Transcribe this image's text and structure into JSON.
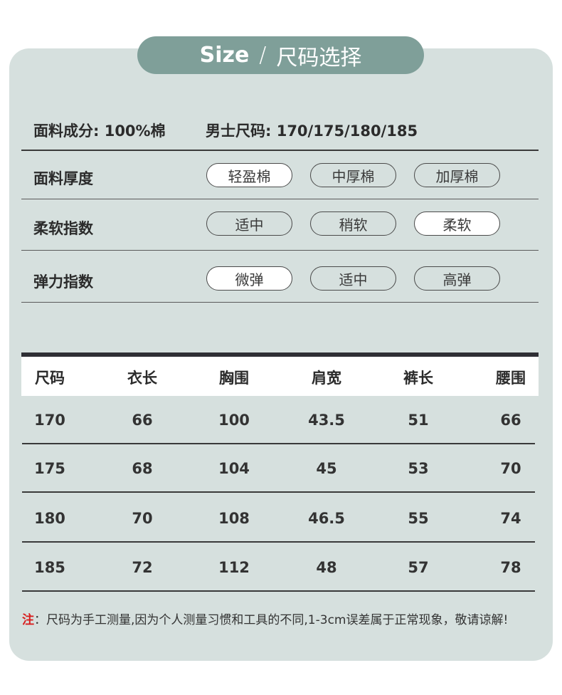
{
  "header": {
    "size_word": "Size",
    "slash": "/",
    "title_cn": "尺码选择"
  },
  "info": {
    "fabric": "面料成分: 100%棉",
    "sizes": "男士尺码: 170/175/180/185"
  },
  "attributes": [
    {
      "label": "面料厚度",
      "options": [
        "轻盈棉",
        "中厚棉",
        "加厚棉"
      ],
      "selected": 0
    },
    {
      "label": "柔软指数",
      "options": [
        "适中",
        "稍软",
        "柔软"
      ],
      "selected": 2
    },
    {
      "label": "弹力指数",
      "options": [
        "微弹",
        "适中",
        "高弹"
      ],
      "selected": 0
    }
  ],
  "table": {
    "headers": [
      "尺码",
      "衣长",
      "胸围",
      "肩宽",
      "裤长",
      "腰围"
    ],
    "rows": [
      [
        "170",
        "66",
        "100",
        "43.5",
        "51",
        "66"
      ],
      [
        "175",
        "68",
        "104",
        "45",
        "53",
        "70"
      ],
      [
        "180",
        "70",
        "108",
        "46.5",
        "55",
        "74"
      ],
      [
        "185",
        "72",
        "112",
        "48",
        "57",
        "78"
      ]
    ]
  },
  "note": {
    "mark": "注",
    "text": "：尺码为手工测量,因为个人测量习惯和工具的不同,1-3cm误差属于正常现象，敬请谅解!"
  }
}
